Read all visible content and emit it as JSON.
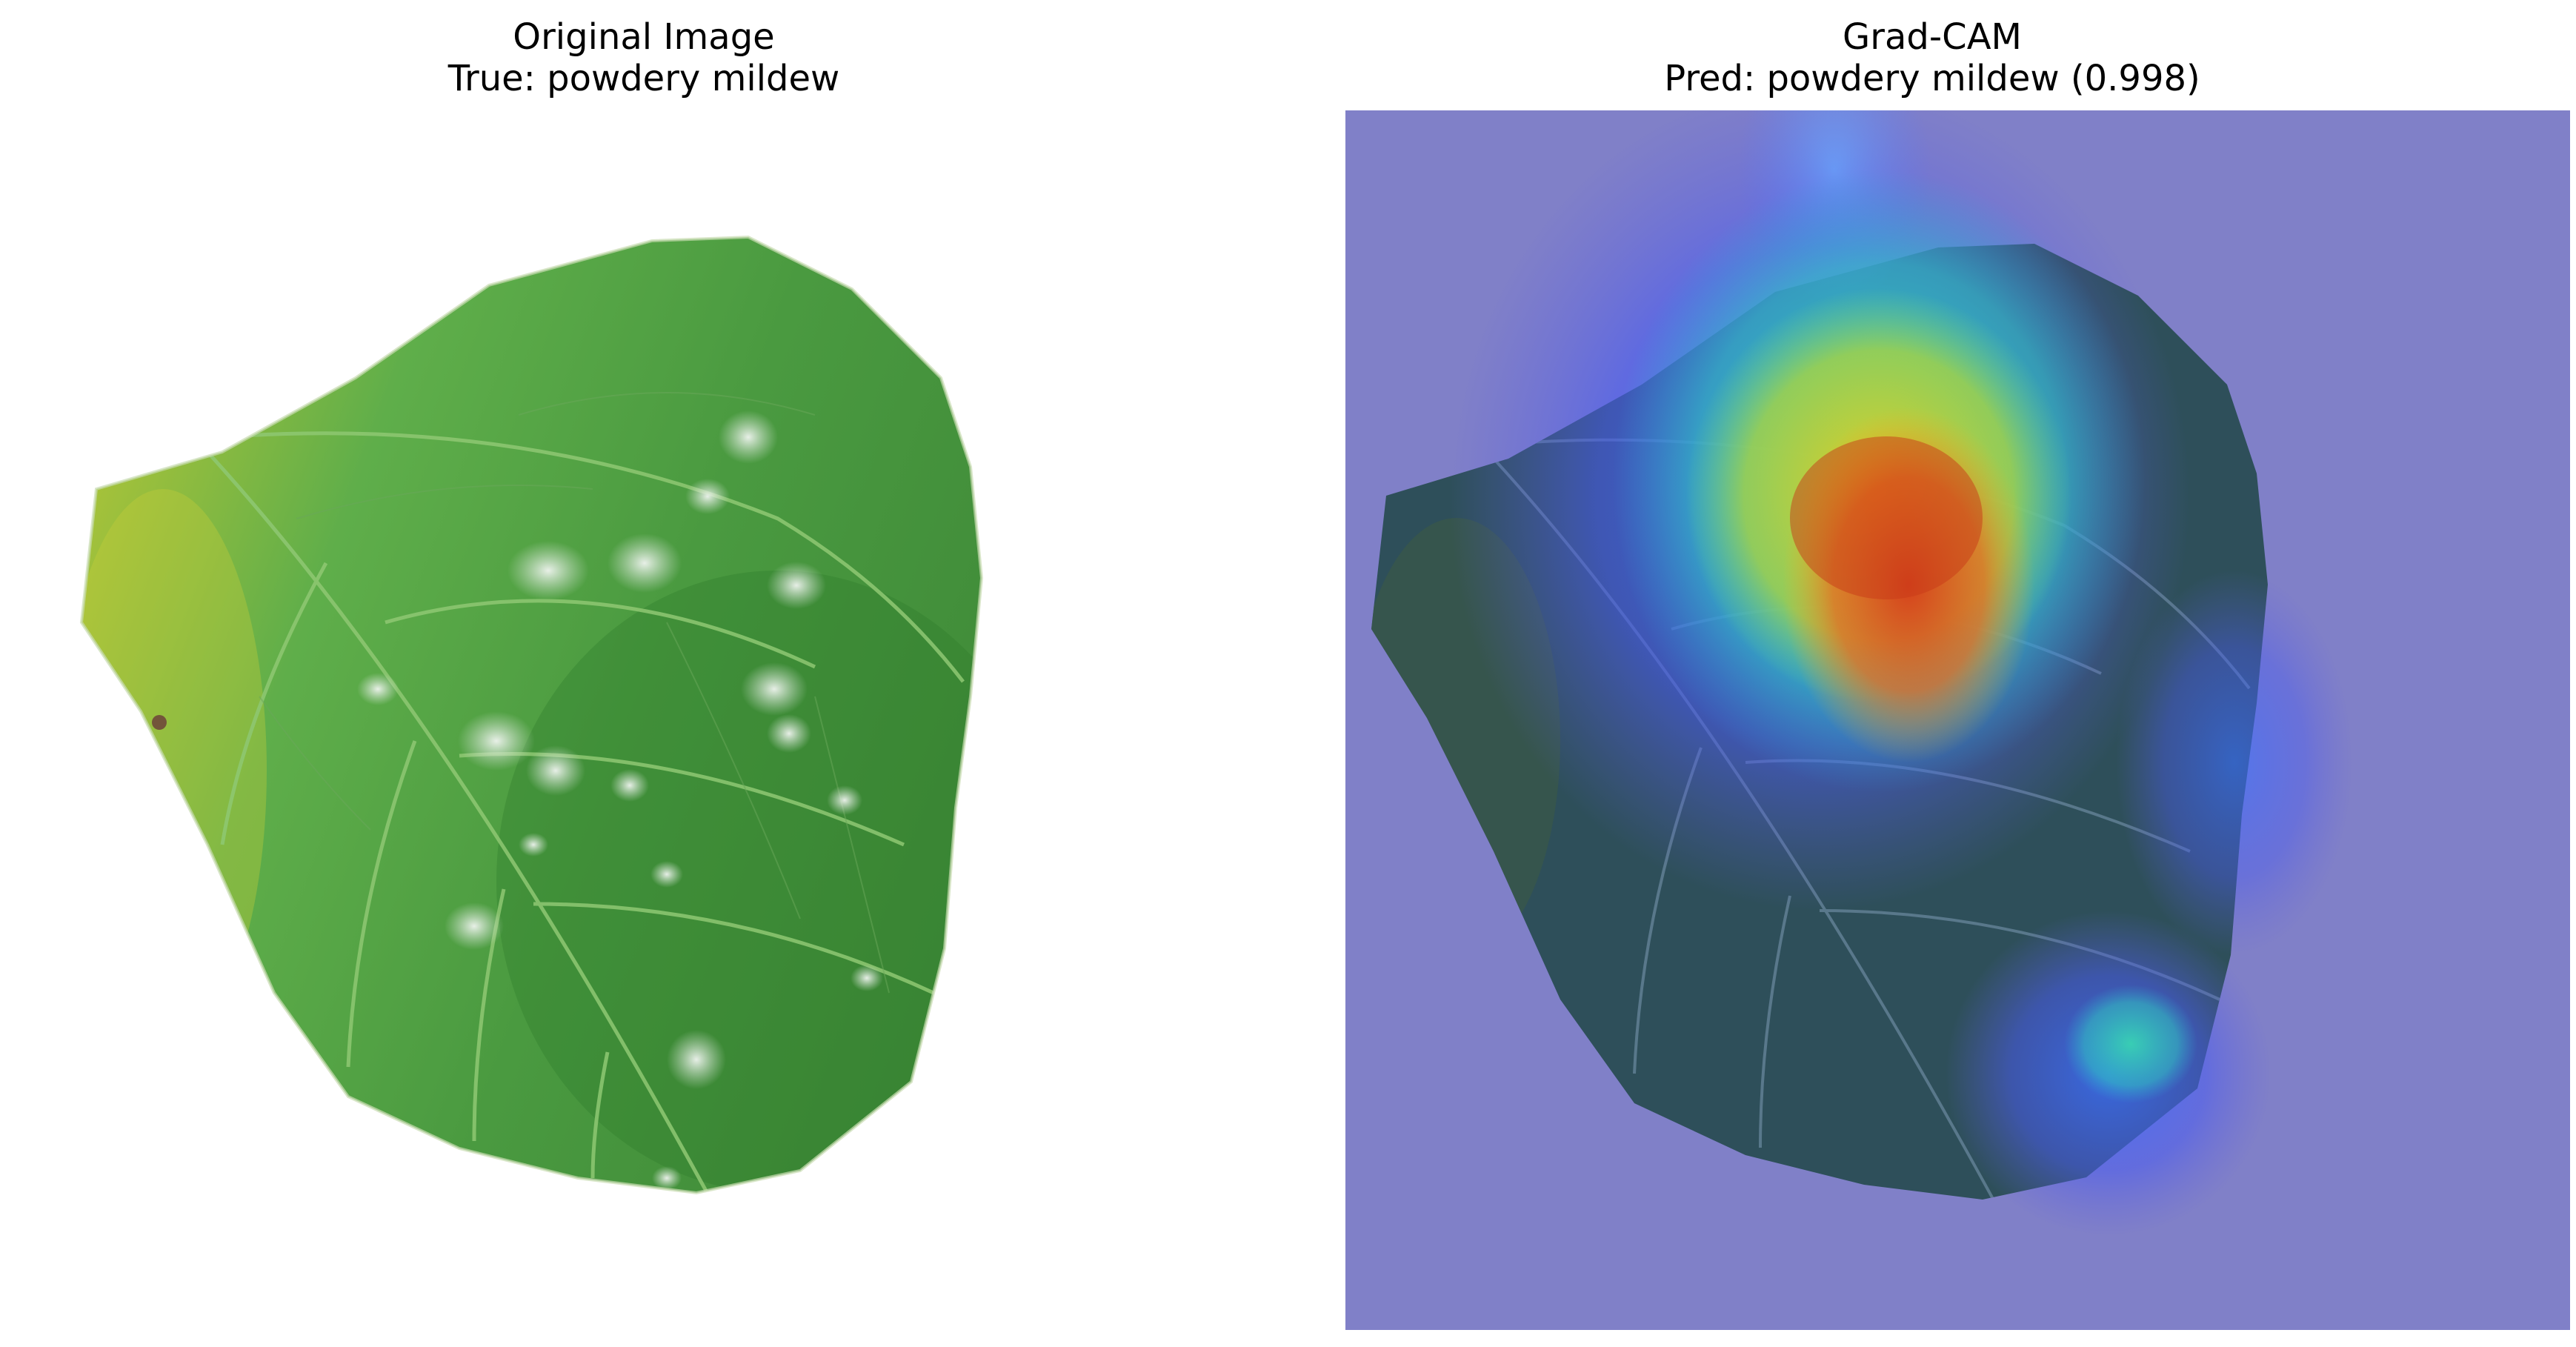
{
  "panels": {
    "original": {
      "title": "Original Image",
      "subtitle": "True: powdery mildew"
    },
    "gradcam": {
      "title": "Grad-CAM",
      "subtitle": "Pred: powdery mildew (0.998)"
    }
  },
  "colors": {
    "leaf_light": "#5fae4a",
    "leaf_mid": "#4a9a40",
    "leaf_dark": "#2f7a2c",
    "leaf_yellow": "#a5c23a",
    "mildew": "#e6ece6",
    "cam_background": "#8080c8",
    "cam_hot": "#d83a1a",
    "cam_warm": "#f2c818",
    "cam_cool": "#38e0b0",
    "cam_cold": "#3050f0"
  }
}
